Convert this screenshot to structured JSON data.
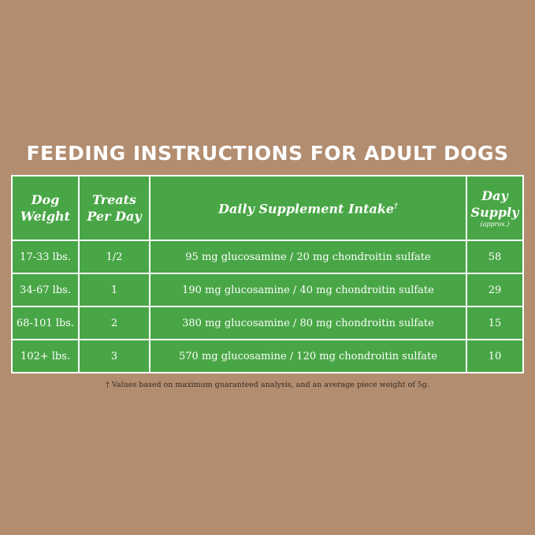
{
  "title": "FEEDING INSTRUCTIONS FOR ADULT DOGS",
  "headers": {
    "weight": "Dog Weight",
    "treats": "Treats Per Day",
    "intake": "Daily Supplement Intake",
    "intake_mark": "†",
    "supply": "Day Supply",
    "supply_note": "(approx.)"
  },
  "rows": [
    {
      "weight": "17-33 lbs.",
      "treats": "1/2",
      "intake": "95 mg glucosamine  / 20 mg chondroitin sulfate",
      "supply": "58"
    },
    {
      "weight": "34-67 lbs.",
      "treats": "1",
      "intake": "190 mg glucosamine  / 40 mg chondroitin sulfate",
      "supply": "29"
    },
    {
      "weight": "68-101 lbs.",
      "treats": "2",
      "intake": "380 mg glucosamine  / 80 mg chondroitin sulfate",
      "supply": "15"
    },
    {
      "weight": "102+ lbs.",
      "treats": "3",
      "intake": "570 mg glucosamine  / 120 mg chondroitin sulfate",
      "supply": "10"
    }
  ],
  "footnote": "† Values based on maximum guaranteed analysis, and an average piece weight of 5g.",
  "colors": {
    "background": "#b28d70",
    "table_green": "#49a646",
    "border": "#ffffff"
  }
}
